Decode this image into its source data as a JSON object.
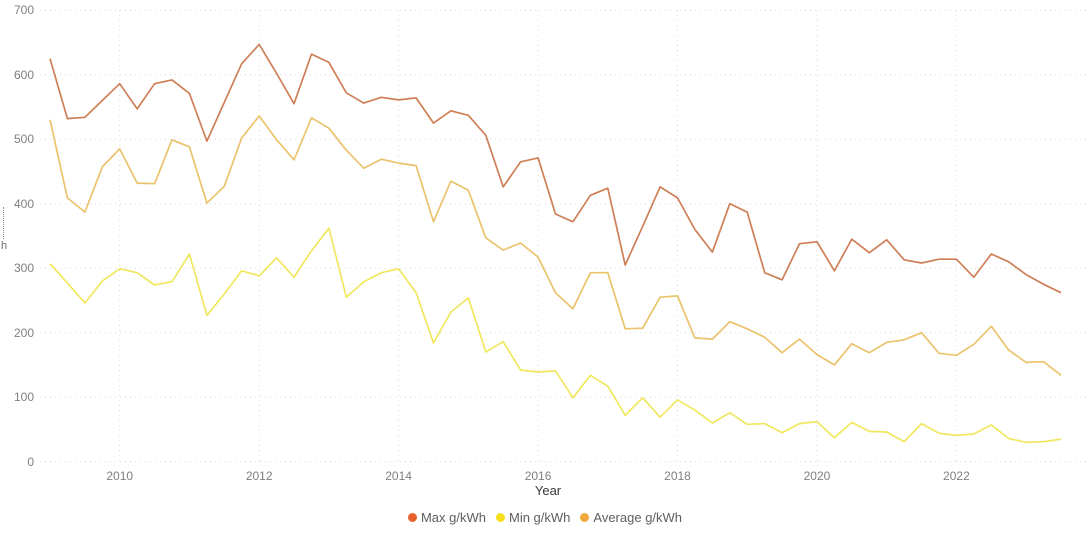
{
  "chart_data": {
    "type": "line",
    "xlabel": "Year",
    "frequency": "quarterly",
    "x_start_year": 2009,
    "x_end": "2023 Q3",
    "x_axis": {
      "tick_years": [
        2010,
        2012,
        2014,
        2016,
        2018,
        2020,
        2022
      ],
      "ticks": [
        "2010",
        "2012",
        "2014",
        "2016",
        "2018",
        "2020",
        "2022"
      ]
    },
    "y_axis": {
      "min": 0,
      "max": 700,
      "step": 100,
      "ticks": [
        "0",
        "100",
        "200",
        "300",
        "400",
        "500",
        "600",
        "700"
      ],
      "title_clipped": "h"
    },
    "series": [
      {
        "name": "Max g/kWh",
        "line_color": "#CE7F58",
        "dot_color": "#E8612C",
        "values": [
          625,
          532,
          534,
          560,
          586,
          547,
          586,
          592,
          571,
          497,
          557,
          617,
          647,
          602,
          555,
          632,
          619,
          572,
          556,
          565,
          561,
          564,
          525,
          544,
          537,
          506,
          426,
          465,
          471,
          384,
          372,
          413,
          424,
          305,
          365,
          426,
          409,
          360,
          325,
          400,
          387,
          293,
          282,
          338,
          341,
          296,
          345,
          324,
          344,
          313,
          308,
          314,
          314,
          286,
          322,
          310,
          290,
          275,
          262
        ]
      },
      {
        "name": "Min g/kWh",
        "line_color": "#F1E75E",
        "dot_color": "#F5E01A",
        "values": [
          307,
          277,
          246,
          280,
          299,
          293,
          274,
          279,
          322,
          227,
          260,
          296,
          288,
          316,
          286,
          327,
          362,
          255,
          279,
          293,
          299,
          262,
          184,
          232,
          254,
          170,
          186,
          142,
          139,
          141,
          99,
          134,
          117,
          72,
          99,
          69,
          96,
          80,
          60,
          76,
          58,
          59,
          45,
          59,
          62,
          37,
          61,
          47,
          46,
          31,
          59,
          44,
          41,
          43,
          57,
          36,
          30,
          31,
          35
        ]
      },
      {
        "name": "Average g/kWh",
        "line_color": "#EAC36B",
        "dot_color": "#F2A93B",
        "values": [
          530,
          409,
          387,
          457,
          485,
          432,
          431,
          499,
          488,
          401,
          427,
          502,
          536,
          499,
          468,
          533,
          517,
          483,
          455,
          469,
          463,
          459,
          372,
          435,
          421,
          347,
          328,
          339,
          317,
          262,
          237,
          293,
          293,
          206,
          207,
          255,
          257,
          192,
          190,
          217,
          206,
          193,
          169,
          190,
          166,
          150,
          183,
          169,
          185,
          189,
          200,
          168,
          165,
          182,
          210,
          173,
          154,
          155,
          134
        ]
      }
    ],
    "legend": {
      "position": "bottom-center",
      "items": [
        "Max g/kWh",
        "Min g/kWh",
        "Average g/kWh"
      ]
    }
  },
  "colors": {
    "background": "#FFFFFF",
    "grid": "#D8D8D8",
    "tick_label": "#7F7F7F",
    "axis_title": "#3B3B3B",
    "legend_text": "#605E5C"
  }
}
